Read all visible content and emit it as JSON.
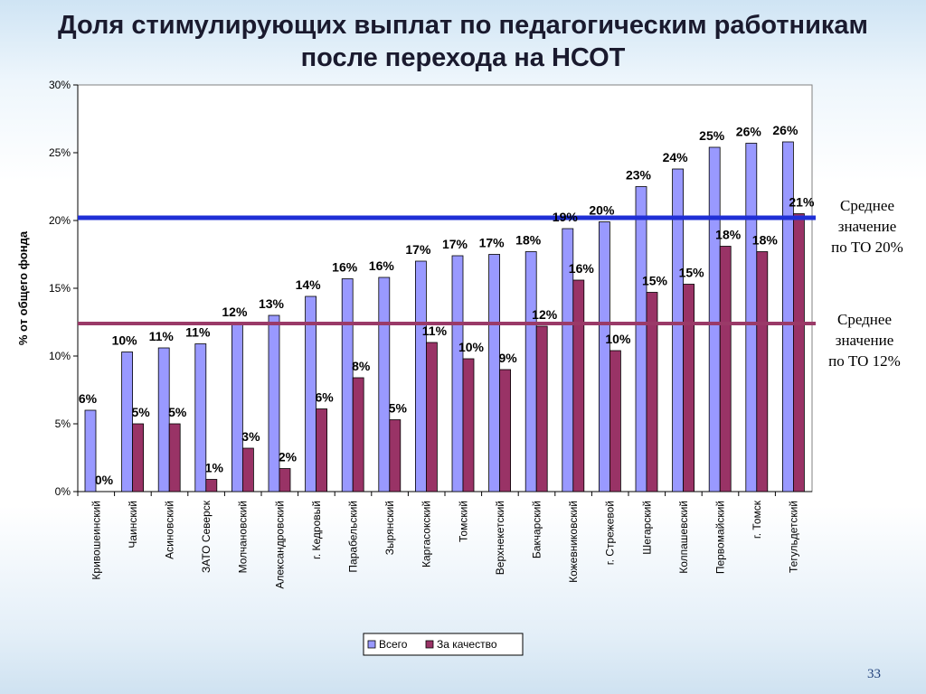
{
  "slide": {
    "title_line1": "Доля стимулирующих выплат по педагогическим работникам",
    "title_line2": "после перехода на НСОТ",
    "page_number": "33"
  },
  "notes": {
    "avg20": [
      "Среднее",
      "значение",
      "по ТО 20%"
    ],
    "avg12": [
      "Среднее",
      "значение",
      "по ТО 12%"
    ]
  },
  "colors": {
    "total": "#9999ff",
    "quality": "#993366",
    "line_avg20": "#1f2fd6",
    "line_avg12": "#9a3a68"
  },
  "chart_data": {
    "type": "bar",
    "title": "",
    "xlabel": "",
    "ylabel": "% от общего фонда",
    "ylim": [
      0,
      30
    ],
    "yticks": [
      "0%",
      "5%",
      "10%",
      "15%",
      "20%",
      "25%",
      "30%"
    ],
    "categories": [
      "Кривошеинский",
      "Чаинский",
      "Асиновский",
      "ЗАТО Северск",
      "Молчановский",
      "Александровский",
      "г. Кедровый",
      "Парабельский",
      "Зырянский",
      "Каргасокский",
      "Томский",
      "Верхнекетский",
      "Бакчарский",
      "Кожевниковский",
      "г. Стрежевой",
      "Шегарский",
      "Колпашевский",
      "Первомайский",
      "г. Томск",
      "Тегульдетский"
    ],
    "series": [
      {
        "name": "Всего",
        "values": [
          6.0,
          10.3,
          10.6,
          10.9,
          12.4,
          13.0,
          14.4,
          15.7,
          15.8,
          17.0,
          17.4,
          17.5,
          17.7,
          19.4,
          19.9,
          22.5,
          23.8,
          25.4,
          25.7,
          25.8
        ],
        "labels": [
          "6%",
          "10%",
          "11%",
          "11%",
          "12%",
          "13%",
          "14%",
          "16%",
          "16%",
          "17%",
          "17%",
          "17%",
          "18%",
          "19%",
          "20%",
          "23%",
          "24%",
          "25%",
          "26%",
          "26%"
        ]
      },
      {
        "name": "За качество",
        "values": [
          0.0,
          5.0,
          5.0,
          0.9,
          3.2,
          1.7,
          6.1,
          8.4,
          5.3,
          11.0,
          9.8,
          9.0,
          12.2,
          15.6,
          10.4,
          14.7,
          15.3,
          18.1,
          17.7,
          20.5
        ],
        "labels": [
          "0%",
          "5%",
          "5%",
          "1%",
          "3%",
          "2%",
          "6%",
          "8%",
          "5%",
          "11%",
          "10%",
          "9%",
          "12%",
          "16%",
          "10%",
          "15%",
          "15%",
          "18%",
          "18%",
          "21%"
        ]
      }
    ],
    "reference_lines": [
      {
        "value": 20.2
      },
      {
        "value": 12.4
      }
    ],
    "legend": "bottom",
    "grid": false
  }
}
